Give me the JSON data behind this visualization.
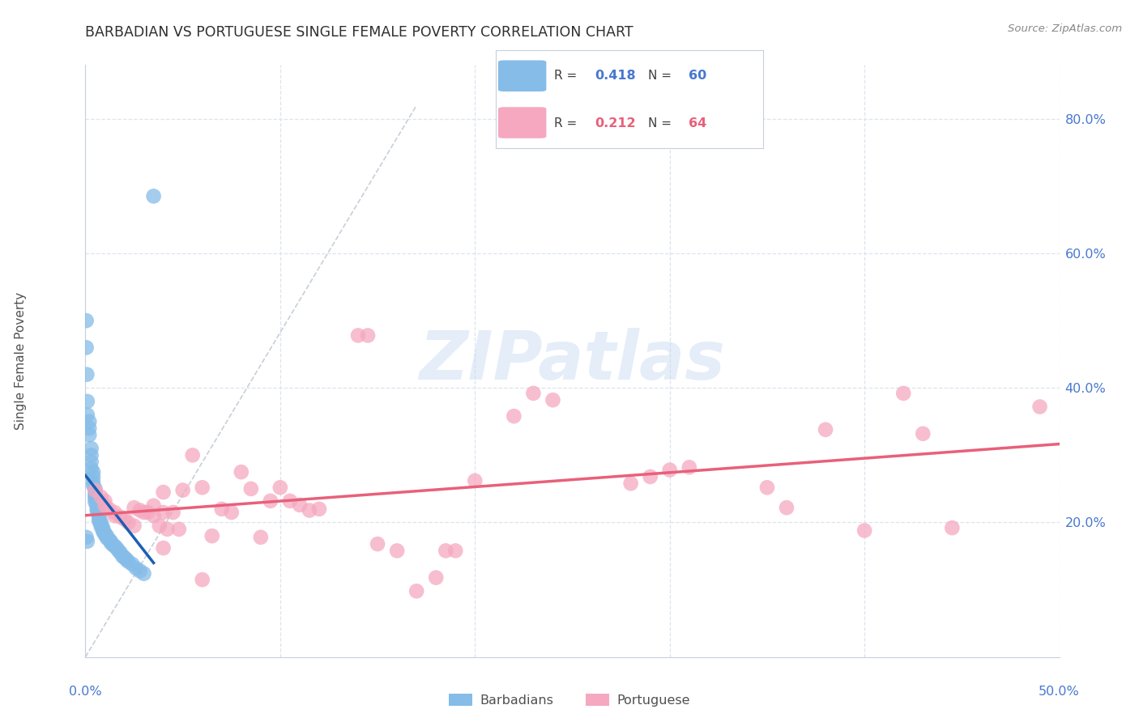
{
  "title": "BARBADIAN VS PORTUGUESE SINGLE FEMALE POVERTY CORRELATION CHART",
  "source": "Source: ZipAtlas.com",
  "ylabel": "Single Female Poverty",
  "barbadian_color": "#85bce8",
  "barbadian_trend_color": "#1a5fb4",
  "portuguese_color": "#f5a8c0",
  "portuguese_trend_color": "#e8607a",
  "diagonal_color": "#c8cfd8",
  "background_color": "#ffffff",
  "grid_color": "#dde4ef",
  "title_color": "#303030",
  "axis_color": "#4878d0",
  "xlim": [
    0.0,
    0.5
  ],
  "ylim": [
    0.0,
    0.88
  ],
  "right_ytick_vals": [
    0.2,
    0.4,
    0.6,
    0.8
  ],
  "watermark_text": "ZIPatlas",
  "legend_R_barbadian": "0.418",
  "legend_N_barbadian": "60",
  "legend_R_portuguese": "0.212",
  "legend_N_portuguese": "64",
  "barbadian_points": [
    [
      0.0005,
      0.5
    ],
    [
      0.0005,
      0.46
    ],
    [
      0.0008,
      0.42
    ],
    [
      0.001,
      0.38
    ],
    [
      0.001,
      0.36
    ],
    [
      0.002,
      0.35
    ],
    [
      0.002,
      0.34
    ],
    [
      0.002,
      0.33
    ],
    [
      0.003,
      0.31
    ],
    [
      0.003,
      0.3
    ],
    [
      0.003,
      0.29
    ],
    [
      0.003,
      0.28
    ],
    [
      0.004,
      0.275
    ],
    [
      0.004,
      0.268
    ],
    [
      0.004,
      0.26
    ],
    [
      0.004,
      0.255
    ],
    [
      0.005,
      0.25
    ],
    [
      0.005,
      0.246
    ],
    [
      0.005,
      0.242
    ],
    [
      0.005,
      0.238
    ],
    [
      0.005,
      0.235
    ],
    [
      0.005,
      0.23
    ],
    [
      0.006,
      0.228
    ],
    [
      0.006,
      0.224
    ],
    [
      0.006,
      0.22
    ],
    [
      0.006,
      0.217
    ],
    [
      0.007,
      0.214
    ],
    [
      0.007,
      0.211
    ],
    [
      0.007,
      0.208
    ],
    [
      0.007,
      0.205
    ],
    [
      0.007,
      0.202
    ],
    [
      0.008,
      0.2
    ],
    [
      0.008,
      0.197
    ],
    [
      0.008,
      0.194
    ],
    [
      0.009,
      0.192
    ],
    [
      0.009,
      0.189
    ],
    [
      0.009,
      0.187
    ],
    [
      0.01,
      0.184
    ],
    [
      0.01,
      0.182
    ],
    [
      0.011,
      0.18
    ],
    [
      0.011,
      0.177
    ],
    [
      0.012,
      0.175
    ],
    [
      0.013,
      0.172
    ],
    [
      0.013,
      0.17
    ],
    [
      0.014,
      0.167
    ],
    [
      0.015,
      0.165
    ],
    [
      0.016,
      0.162
    ],
    [
      0.017,
      0.158
    ],
    [
      0.018,
      0.155
    ],
    [
      0.019,
      0.15
    ],
    [
      0.02,
      0.148
    ],
    [
      0.021,
      0.145
    ],
    [
      0.022,
      0.142
    ],
    [
      0.024,
      0.138
    ],
    [
      0.026,
      0.132
    ],
    [
      0.028,
      0.128
    ],
    [
      0.03,
      0.124
    ],
    [
      0.035,
      0.685
    ],
    [
      0.0005,
      0.178
    ],
    [
      0.001,
      0.172
    ]
  ],
  "portuguese_points": [
    [
      0.005,
      0.248
    ],
    [
      0.008,
      0.238
    ],
    [
      0.01,
      0.232
    ],
    [
      0.01,
      0.225
    ],
    [
      0.012,
      0.22
    ],
    [
      0.015,
      0.215
    ],
    [
      0.015,
      0.21
    ],
    [
      0.018,
      0.208
    ],
    [
      0.02,
      0.205
    ],
    [
      0.022,
      0.2
    ],
    [
      0.025,
      0.222
    ],
    [
      0.025,
      0.195
    ],
    [
      0.028,
      0.218
    ],
    [
      0.03,
      0.215
    ],
    [
      0.032,
      0.215
    ],
    [
      0.035,
      0.225
    ],
    [
      0.035,
      0.21
    ],
    [
      0.038,
      0.195
    ],
    [
      0.04,
      0.245
    ],
    [
      0.04,
      0.215
    ],
    [
      0.042,
      0.19
    ],
    [
      0.045,
      0.215
    ],
    [
      0.048,
      0.19
    ],
    [
      0.05,
      0.248
    ],
    [
      0.055,
      0.3
    ],
    [
      0.06,
      0.252
    ],
    [
      0.065,
      0.18
    ],
    [
      0.07,
      0.22
    ],
    [
      0.075,
      0.215
    ],
    [
      0.08,
      0.275
    ],
    [
      0.085,
      0.25
    ],
    [
      0.09,
      0.178
    ],
    [
      0.095,
      0.232
    ],
    [
      0.1,
      0.252
    ],
    [
      0.105,
      0.232
    ],
    [
      0.11,
      0.226
    ],
    [
      0.115,
      0.218
    ],
    [
      0.12,
      0.22
    ],
    [
      0.14,
      0.478
    ],
    [
      0.145,
      0.478
    ],
    [
      0.15,
      0.168
    ],
    [
      0.16,
      0.158
    ],
    [
      0.17,
      0.098
    ],
    [
      0.18,
      0.118
    ],
    [
      0.185,
      0.158
    ],
    [
      0.19,
      0.158
    ],
    [
      0.2,
      0.262
    ],
    [
      0.22,
      0.358
    ],
    [
      0.23,
      0.392
    ],
    [
      0.24,
      0.382
    ],
    [
      0.28,
      0.258
    ],
    [
      0.29,
      0.268
    ],
    [
      0.3,
      0.278
    ],
    [
      0.31,
      0.282
    ],
    [
      0.35,
      0.252
    ],
    [
      0.36,
      0.222
    ],
    [
      0.38,
      0.338
    ],
    [
      0.4,
      0.188
    ],
    [
      0.42,
      0.392
    ],
    [
      0.43,
      0.332
    ],
    [
      0.445,
      0.192
    ],
    [
      0.49,
      0.372
    ],
    [
      0.04,
      0.162
    ],
    [
      0.06,
      0.115
    ]
  ]
}
